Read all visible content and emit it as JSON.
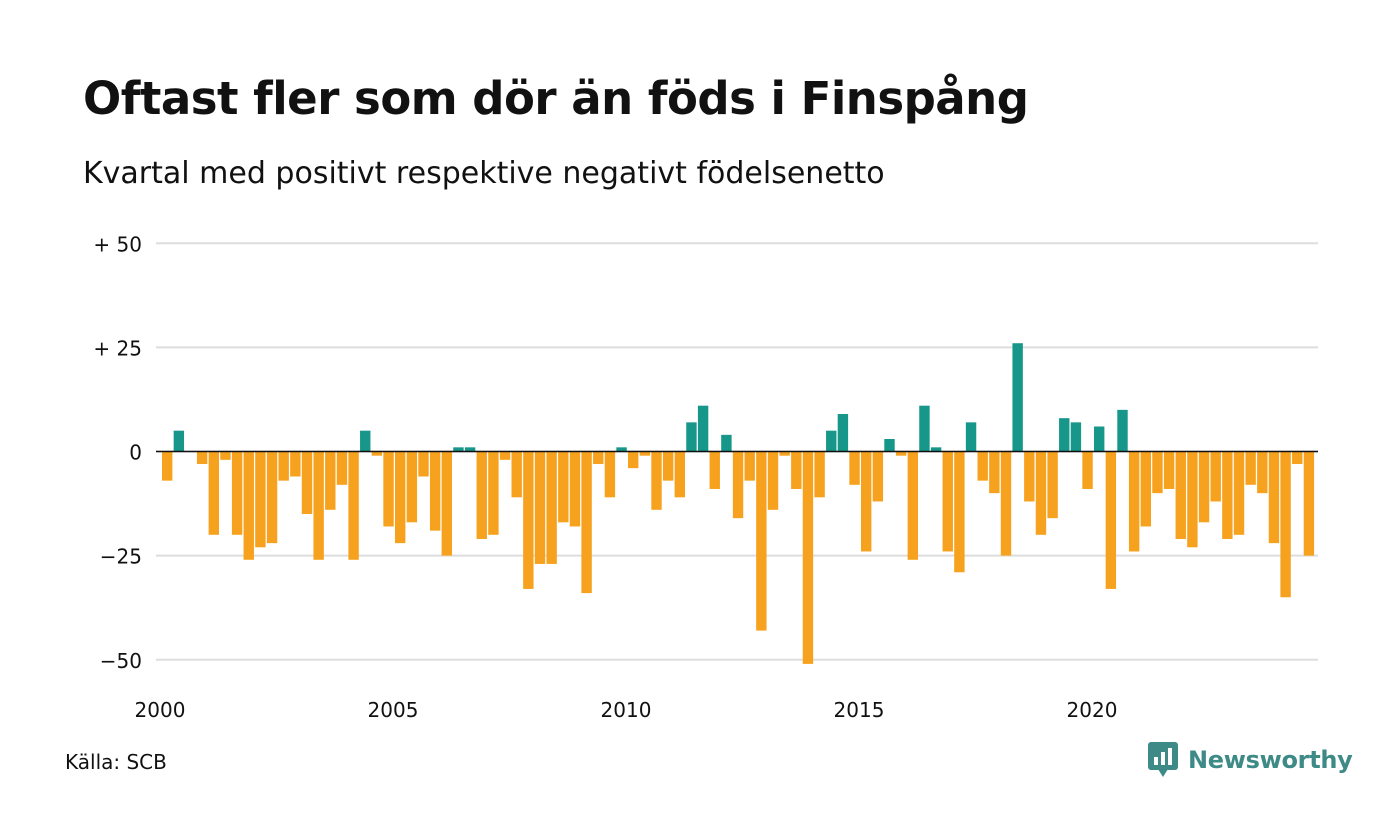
{
  "title": "Oftast fler som dör än föds i Finspång",
  "subtitle": "Kvartal med positivt respektive negativt födelsenetto",
  "source": "Källa: SCB",
  "brand": "Newsworthy",
  "colors": {
    "positive": "#17968a",
    "negative": "#f7a21e",
    "grid": "#dddddd",
    "brand": "#3d8a86"
  },
  "chart_data": {
    "type": "bar",
    "x_start": "2000 Q1",
    "ylim": [
      -55,
      50
    ],
    "y_ticks": [
      {
        "value": 50,
        "label": "+ 50"
      },
      {
        "value": 25,
        "label": "+ 25"
      },
      {
        "value": 0,
        "label": "0"
      },
      {
        "value": -25,
        "label": "−25"
      },
      {
        "value": -50,
        "label": "−50"
      }
    ],
    "x_ticks": [
      {
        "year": 2000,
        "label": "2000"
      },
      {
        "year": 2005,
        "label": "2005"
      },
      {
        "year": 2010,
        "label": "2010"
      },
      {
        "year": 2015,
        "label": "2015"
      },
      {
        "year": 2020,
        "label": "2020"
      }
    ],
    "grid": true,
    "legend": "none",
    "values": [
      -7,
      5,
      0,
      -3,
      -20,
      -2,
      -20,
      -26,
      -23,
      -22,
      -7,
      -6,
      -15,
      -26,
      -14,
      -8,
      -26,
      5,
      -1,
      -18,
      -22,
      -17,
      -6,
      -19,
      -25,
      1,
      1,
      -21,
      -20,
      -2,
      -11,
      -33,
      -27,
      -27,
      -17,
      -18,
      -34,
      -3,
      -11,
      1,
      -4,
      -1,
      -14,
      -7,
      -11,
      7,
      11,
      -9,
      4,
      -16,
      -7,
      -43,
      -14,
      -1,
      -9,
      -51,
      -11,
      5,
      9,
      -8,
      -24,
      -12,
      3,
      -1,
      -26,
      11,
      1,
      -24,
      -29,
      7,
      -7,
      -10,
      -25,
      26,
      -12,
      -20,
      -16,
      8,
      7,
      -9,
      6,
      -33,
      10,
      -24,
      -18,
      -10,
      -9,
      -21,
      -23,
      -17,
      -12,
      -21,
      -20,
      -8,
      -10,
      -22,
      -35,
      -3,
      -25
    ]
  }
}
